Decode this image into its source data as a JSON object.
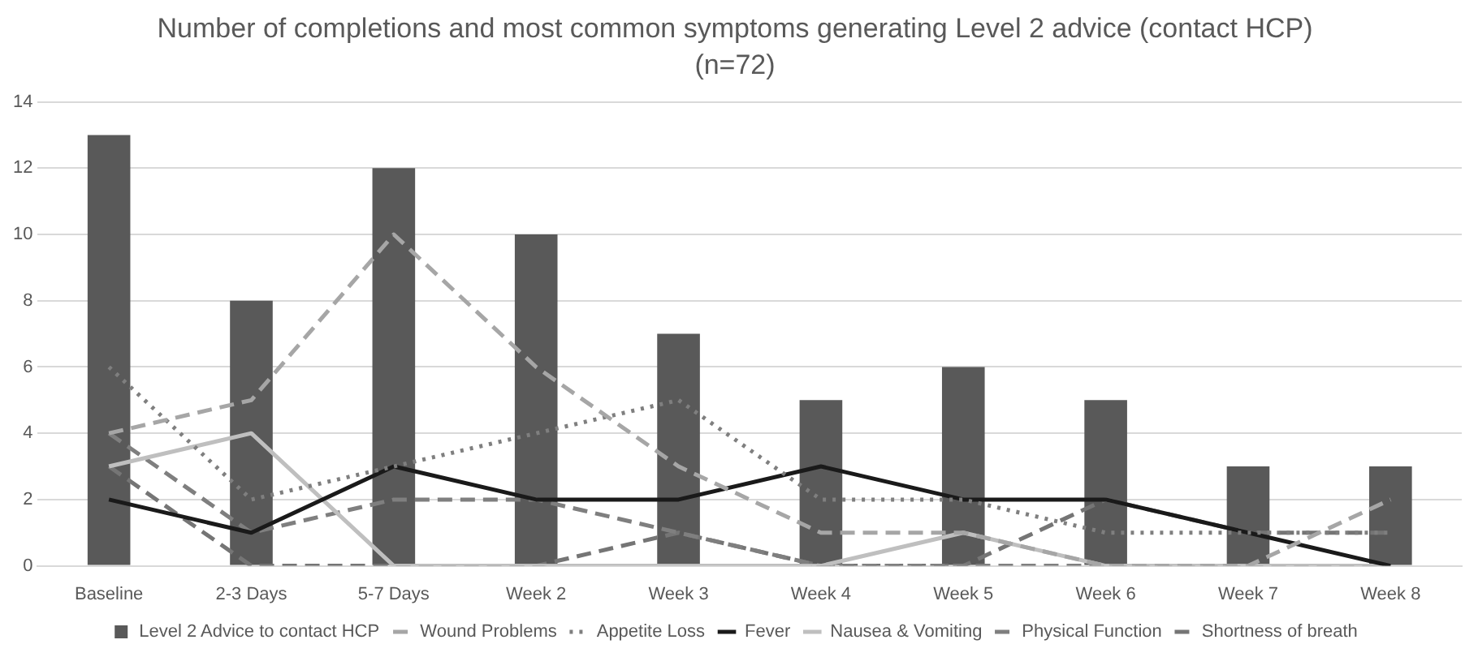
{
  "chart_data": {
    "type": "bar",
    "title": "Number of completions and most common symptoms generating Level 2 advice (contact HCP)",
    "subtitle": "(n=72)",
    "categories": [
      "Baseline",
      "2-3 Days",
      "5-7 Days",
      "Week 2",
      "Week 3",
      "Week 4",
      "Week 5",
      "Week 6",
      "Week 7",
      "Week 8"
    ],
    "series": [
      {
        "name": "Level 2 Advice to contact HCP",
        "color": "#595959",
        "values": [
          13,
          8,
          12,
          10,
          7,
          5,
          6,
          5,
          3,
          3
        ]
      },
      {
        "name": "Wound Problems",
        "type": "line",
        "line_style": "dashed",
        "color": "#a6a6a6",
        "values": [
          4,
          5,
          10,
          6,
          3,
          1,
          1,
          0,
          0,
          2
        ]
      },
      {
        "name": "Appetite Loss",
        "type": "line",
        "line_style": "dotted",
        "color": "#7f7f7f",
        "values": [
          6,
          2,
          3,
          4,
          5,
          2,
          2,
          1,
          1,
          1
        ]
      },
      {
        "name": "Fever",
        "type": "line",
        "line_style": "solid",
        "color": "#1a1a1a",
        "values": [
          2,
          1,
          3,
          2,
          2,
          3,
          2,
          2,
          1,
          0
        ]
      },
      {
        "name": "Nausea & Vomiting",
        "type": "line",
        "line_style": "solid",
        "color": "#bfbfbf",
        "values": [
          3,
          4,
          0,
          0,
          0,
          0,
          1,
          0,
          0,
          0
        ]
      },
      {
        "name": "Physical Function",
        "type": "line",
        "line_style": "dashed",
        "color": "#7f7f7f",
        "values": [
          4,
          1,
          2,
          2,
          1,
          0,
          0,
          0,
          0,
          0
        ]
      },
      {
        "name": "Shortness of breath",
        "type": "line",
        "line_style": "dashed",
        "color": "#757575",
        "values": [
          3,
          0,
          0,
          0,
          1,
          0,
          0,
          2,
          1,
          1
        ]
      }
    ],
    "ylim": [
      0,
      14
    ],
    "yticks": [
      0,
      2,
      4,
      6,
      8,
      10,
      12,
      14
    ],
    "grid": "y",
    "legend": "bottom",
    "marker": "none"
  }
}
